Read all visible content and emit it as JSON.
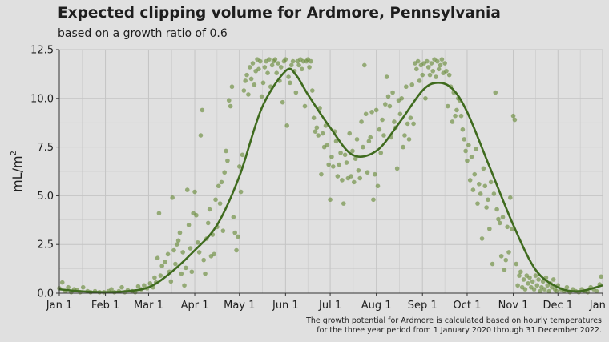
{
  "chart_data": {
    "type": "scatter",
    "title": "Expected clipping volume for Ardmore, Pennsylvania",
    "subtitle": "based on a growth ratio of 0.6",
    "ylabel": "mL/m",
    "ylabel_superscript": "2",
    "xlabel": "",
    "ylim": [
      0,
      12.5
    ],
    "yticks": [
      0,
      2.5,
      5,
      7.5,
      10,
      12.5
    ],
    "ytick_labels": [
      "0.0",
      "2.5",
      "5.0",
      "7.5",
      "10.0",
      "12.5"
    ],
    "xlim": [
      1,
      366
    ],
    "xticks": [
      1,
      32,
      61,
      92,
      122,
      153,
      183,
      214,
      245,
      275,
      306,
      336,
      366
    ],
    "xtick_labels": [
      "Jan 1",
      "Feb 1",
      "Mar 1",
      "Apr 1",
      "May 1",
      "Jun 1",
      "Jul 1",
      "Aug 1",
      "Sep 1",
      "Oct 1",
      "Nov 1",
      "Dec 1",
      "Jan 1"
    ],
    "grid": true,
    "colors": {
      "points": "#6b8e3e",
      "line": "#3f6b1e",
      "background": "#e0e0e0",
      "grid": "#c4c4c4"
    },
    "smooth_line": [
      [
        1,
        0.2
      ],
      [
        15,
        0.1
      ],
      [
        32,
        0.05
      ],
      [
        46,
        0.1
      ],
      [
        61,
        0.3
      ],
      [
        75,
        1.0
      ],
      [
        92,
        2.2
      ],
      [
        107,
        3.5
      ],
      [
        122,
        6.0
      ],
      [
        137,
        9.5
      ],
      [
        153,
        11.4
      ],
      [
        160,
        11.2
      ],
      [
        168,
        10.2
      ],
      [
        183,
        8.5
      ],
      [
        198,
        7.1
      ],
      [
        214,
        7.3
      ],
      [
        229,
        8.7
      ],
      [
        245,
        10.4
      ],
      [
        255,
        10.8
      ],
      [
        265,
        10.5
      ],
      [
        275,
        9.3
      ],
      [
        290,
        6.5
      ],
      [
        306,
        3.5
      ],
      [
        321,
        1.2
      ],
      [
        336,
        0.3
      ],
      [
        350,
        0.1
      ],
      [
        366,
        0.4
      ]
    ],
    "points": [
      [
        1,
        0.25
      ],
      [
        3,
        0.55
      ],
      [
        5,
        0.1
      ],
      [
        7,
        0.3
      ],
      [
        9,
        0.05
      ],
      [
        11,
        0.2
      ],
      [
        13,
        0.15
      ],
      [
        15,
        0.05
      ],
      [
        17,
        0.3
      ],
      [
        20,
        0.1
      ],
      [
        22,
        0.05
      ],
      [
        25,
        0.1
      ],
      [
        28,
        0.05
      ],
      [
        31,
        0.05
      ],
      [
        34,
        0.1
      ],
      [
        36,
        0.2
      ],
      [
        38,
        0.05
      ],
      [
        41,
        0.1
      ],
      [
        43,
        0.3
      ],
      [
        45,
        0.05
      ],
      [
        47,
        0.15
      ],
      [
        50,
        0.1
      ],
      [
        52,
        0.05
      ],
      [
        54,
        0.35
      ],
      [
        56,
        0.2
      ],
      [
        58,
        0.4
      ],
      [
        60,
        0.25
      ],
      [
        62,
        0.5
      ],
      [
        64,
        0.3
      ],
      [
        65,
        0.8
      ],
      [
        66,
        0.55
      ],
      [
        67,
        1.8
      ],
      [
        68,
        4.1
      ],
      [
        69,
        0.9
      ],
      [
        70,
        1.4
      ],
      [
        72,
        1.6
      ],
      [
        74,
        2.0
      ],
      [
        75,
        1.1
      ],
      [
        76,
        0.6
      ],
      [
        77,
        4.9
      ],
      [
        78,
        2.2
      ],
      [
        79,
        1.5
      ],
      [
        80,
        2.5
      ],
      [
        81,
        2.7
      ],
      [
        82,
        3.1
      ],
      [
        83,
        1.0
      ],
      [
        84,
        2.1
      ],
      [
        85,
        0.4
      ],
      [
        86,
        1.3
      ],
      [
        87,
        5.3
      ],
      [
        88,
        3.5
      ],
      [
        89,
        2.3
      ],
      [
        90,
        1.1
      ],
      [
        91,
        4.1
      ],
      [
        92,
        5.2
      ],
      [
        93,
        4.0
      ],
      [
        94,
        2.6
      ],
      [
        95,
        2.1
      ],
      [
        96,
        8.1
      ],
      [
        97,
        9.4
      ],
      [
        98,
        1.7
      ],
      [
        99,
        1.0
      ],
      [
        100,
        2.8
      ],
      [
        101,
        3.6
      ],
      [
        102,
        4.3
      ],
      [
        103,
        1.9
      ],
      [
        104,
        3.0
      ],
      [
        105,
        2.0
      ],
      [
        106,
        4.8
      ],
      [
        107,
        3.4
      ],
      [
        108,
        5.5
      ],
      [
        109,
        4.6
      ],
      [
        110,
        5.7
      ],
      [
        111,
        3.2
      ],
      [
        112,
        6.2
      ],
      [
        113,
        7.3
      ],
      [
        114,
        6.8
      ],
      [
        115,
        9.9
      ],
      [
        116,
        9.6
      ],
      [
        117,
        10.6
      ],
      [
        118,
        3.9
      ],
      [
        119,
        3.1
      ],
      [
        120,
        2.2
      ],
      [
        121,
        2.9
      ],
      [
        122,
        6.5
      ],
      [
        123,
        5.2
      ],
      [
        124,
        7.1
      ],
      [
        125,
        10.4
      ],
      [
        126,
        10.9
      ],
      [
        127,
        11.2
      ],
      [
        128,
        10.2
      ],
      [
        129,
        11.6
      ],
      [
        130,
        11.0
      ],
      [
        131,
        11.8
      ],
      [
        132,
        10.7
      ],
      [
        133,
        11.4
      ],
      [
        134,
        12.0
      ],
      [
        135,
        11.5
      ],
      [
        136,
        11.9
      ],
      [
        137,
        10.1
      ],
      [
        138,
        10.8
      ],
      [
        139,
        11.6
      ],
      [
        140,
        11.9
      ],
      [
        141,
        11.3
      ],
      [
        142,
        12.0
      ],
      [
        143,
        10.6
      ],
      [
        144,
        11.7
      ],
      [
        145,
        11.9
      ],
      [
        146,
        12.0
      ],
      [
        147,
        11.3
      ],
      [
        148,
        11.8
      ],
      [
        149,
        10.9
      ],
      [
        150,
        11.6
      ],
      [
        151,
        9.8
      ],
      [
        152,
        11.9
      ],
      [
        153,
        12.0
      ],
      [
        154,
        8.6
      ],
      [
        155,
        11.1
      ],
      [
        156,
        10.8
      ],
      [
        157,
        11.7
      ],
      [
        158,
        11.9
      ],
      [
        159,
        11.4
      ],
      [
        160,
        10.3
      ],
      [
        161,
        11.9
      ],
      [
        162,
        11.7
      ],
      [
        163,
        12.0
      ],
      [
        164,
        11.5
      ],
      [
        165,
        11.9
      ],
      [
        166,
        9.6
      ],
      [
        167,
        11.9
      ],
      [
        168,
        12.0
      ],
      [
        169,
        11.6
      ],
      [
        170,
        11.9
      ],
      [
        171,
        10.4
      ],
      [
        172,
        9.0
      ],
      [
        173,
        8.3
      ],
      [
        174,
        8.5
      ],
      [
        175,
        8.1
      ],
      [
        176,
        9.5
      ],
      [
        177,
        6.1
      ],
      [
        178,
        8.2
      ],
      [
        179,
        7.5
      ],
      [
        180,
        8.6
      ],
      [
        181,
        7.6
      ],
      [
        182,
        6.6
      ],
      [
        183,
        4.8
      ],
      [
        184,
        7.0
      ],
      [
        185,
        6.5
      ],
      [
        186,
        8.3
      ],
      [
        187,
        7.8
      ],
      [
        188,
        6.0
      ],
      [
        189,
        6.6
      ],
      [
        190,
        7.2
      ],
      [
        191,
        5.8
      ],
      [
        192,
        4.6
      ],
      [
        193,
        7.1
      ],
      [
        194,
        6.7
      ],
      [
        195,
        5.9
      ],
      [
        196,
        8.2
      ],
      [
        197,
        6.0
      ],
      [
        198,
        7.3
      ],
      [
        199,
        5.7
      ],
      [
        200,
        6.9
      ],
      [
        201,
        7.9
      ],
      [
        202,
        6.3
      ],
      [
        203,
        5.9
      ],
      [
        204,
        8.8
      ],
      [
        205,
        7.5
      ],
      [
        206,
        11.7
      ],
      [
        207,
        9.2
      ],
      [
        208,
        6.2
      ],
      [
        209,
        7.8
      ],
      [
        210,
        8.0
      ],
      [
        211,
        9.3
      ],
      [
        212,
        4.8
      ],
      [
        213,
        6.1
      ],
      [
        214,
        9.4
      ],
      [
        215,
        5.5
      ],
      [
        216,
        8.4
      ],
      [
        217,
        7.2
      ],
      [
        218,
        8.9
      ],
      [
        219,
        8.1
      ],
      [
        220,
        9.7
      ],
      [
        221,
        11.1
      ],
      [
        222,
        10.1
      ],
      [
        223,
        9.6
      ],
      [
        224,
        8.0
      ],
      [
        225,
        10.3
      ],
      [
        226,
        8.8
      ],
      [
        227,
        8.5
      ],
      [
        228,
        6.4
      ],
      [
        229,
        9.9
      ],
      [
        230,
        9.2
      ],
      [
        231,
        10.0
      ],
      [
        232,
        7.5
      ],
      [
        233,
        8.1
      ],
      [
        234,
        10.6
      ],
      [
        235,
        8.7
      ],
      [
        236,
        7.9
      ],
      [
        237,
        9.0
      ],
      [
        238,
        10.7
      ],
      [
        239,
        8.7
      ],
      [
        240,
        11.8
      ],
      [
        241,
        11.5
      ],
      [
        242,
        11.9
      ],
      [
        243,
        10.9
      ],
      [
        244,
        11.7
      ],
      [
        245,
        11.2
      ],
      [
        246,
        11.8
      ],
      [
        247,
        10.0
      ],
      [
        248,
        11.9
      ],
      [
        249,
        11.6
      ],
      [
        250,
        11.2
      ],
      [
        251,
        11.8
      ],
      [
        252,
        11.4
      ],
      [
        253,
        12.0
      ],
      [
        254,
        11.1
      ],
      [
        255,
        11.9
      ],
      [
        256,
        11.5
      ],
      [
        257,
        11.7
      ],
      [
        258,
        12.0
      ],
      [
        259,
        11.3
      ],
      [
        260,
        11.8
      ],
      [
        261,
        11.4
      ],
      [
        262,
        9.6
      ],
      [
        263,
        11.2
      ],
      [
        264,
        10.6
      ],
      [
        265,
        8.8
      ],
      [
        266,
        10.3
      ],
      [
        267,
        9.1
      ],
      [
        268,
        9.4
      ],
      [
        269,
        10.0
      ],
      [
        270,
        9.9
      ],
      [
        271,
        9.1
      ],
      [
        272,
        8.4
      ],
      [
        273,
        7.9
      ],
      [
        274,
        7.3
      ],
      [
        275,
        6.8
      ],
      [
        276,
        7.6
      ],
      [
        277,
        5.8
      ],
      [
        278,
        7.0
      ],
      [
        279,
        5.3
      ],
      [
        280,
        6.1
      ],
      [
        281,
        7.4
      ],
      [
        282,
        4.6
      ],
      [
        283,
        5.6
      ],
      [
        284,
        5.1
      ],
      [
        285,
        2.8
      ],
      [
        286,
        6.4
      ],
      [
        287,
        5.5
      ],
      [
        288,
        4.4
      ],
      [
        289,
        4.8
      ],
      [
        290,
        3.3
      ],
      [
        291,
        5.7
      ],
      [
        292,
        1.5
      ],
      [
        293,
        5.1
      ],
      [
        294,
        10.3
      ],
      [
        295,
        4.3
      ],
      [
        296,
        3.8
      ],
      [
        297,
        3.6
      ],
      [
        298,
        1.9
      ],
      [
        299,
        3.9
      ],
      [
        300,
        1.2
      ],
      [
        301,
        1.7
      ],
      [
        302,
        3.4
      ],
      [
        303,
        2.1
      ],
      [
        304,
        4.9
      ],
      [
        305,
        3.3
      ],
      [
        306,
        9.1
      ],
      [
        307,
        8.9
      ],
      [
        308,
        1.5
      ],
      [
        309,
        0.4
      ],
      [
        310,
        0.9
      ],
      [
        311,
        1.1
      ],
      [
        312,
        0.3
      ],
      [
        313,
        0.7
      ],
      [
        314,
        0.2
      ],
      [
        315,
        0.9
      ],
      [
        316,
        0.5
      ],
      [
        317,
        0.8
      ],
      [
        318,
        0.3
      ],
      [
        319,
        0.6
      ],
      [
        320,
        0.2
      ],
      [
        321,
        0.9
      ],
      [
        322,
        0.4
      ],
      [
        323,
        0.7
      ],
      [
        324,
        0.1
      ],
      [
        325,
        0.3
      ],
      [
        326,
        0.6
      ],
      [
        327,
        0.2
      ],
      [
        328,
        0.8
      ],
      [
        329,
        0.4
      ],
      [
        330,
        0.1
      ],
      [
        331,
        0.5
      ],
      [
        332,
        0.3
      ],
      [
        333,
        0.7
      ],
      [
        334,
        0.2
      ],
      [
        335,
        0.1
      ],
      [
        336,
        0.4
      ],
      [
        338,
        0.2
      ],
      [
        340,
        0.1
      ],
      [
        342,
        0.3
      ],
      [
        344,
        0.05
      ],
      [
        346,
        0.2
      ],
      [
        348,
        0.1
      ],
      [
        350,
        0.05
      ],
      [
        352,
        0.2
      ],
      [
        354,
        0.1
      ],
      [
        356,
        0.05
      ],
      [
        358,
        0.3
      ],
      [
        360,
        0.2
      ],
      [
        362,
        0.1
      ],
      [
        364,
        0.45
      ],
      [
        365,
        0.85
      ]
    ]
  },
  "caption": {
    "line1": "The growth potential for Ardmore is calculated based on hourly temperatures",
    "line2": "for the three year period from 1 January 2020 through 31 December 2022."
  }
}
